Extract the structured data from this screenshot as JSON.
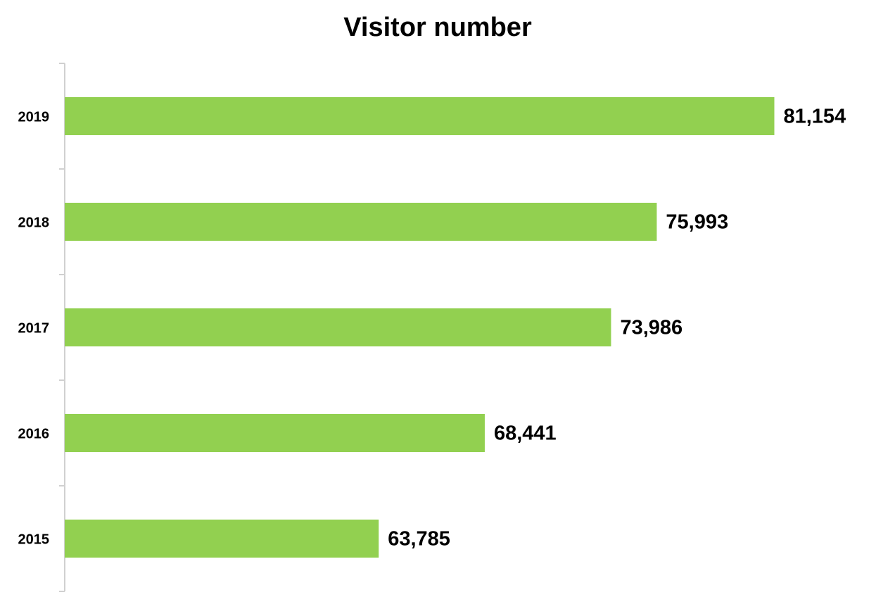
{
  "chart_data": {
    "type": "bar",
    "orientation": "horizontal",
    "title": "Visitor number",
    "categories": [
      "2019",
      "2018",
      "2017",
      "2016",
      "2015"
    ],
    "values": [
      81154,
      75993,
      73986,
      68441,
      63785
    ],
    "value_labels": [
      "81,154",
      "75,993",
      "73,986",
      "68,441",
      "63,785"
    ],
    "color": "#92d050",
    "xlim": [
      50000,
      85000
    ]
  }
}
